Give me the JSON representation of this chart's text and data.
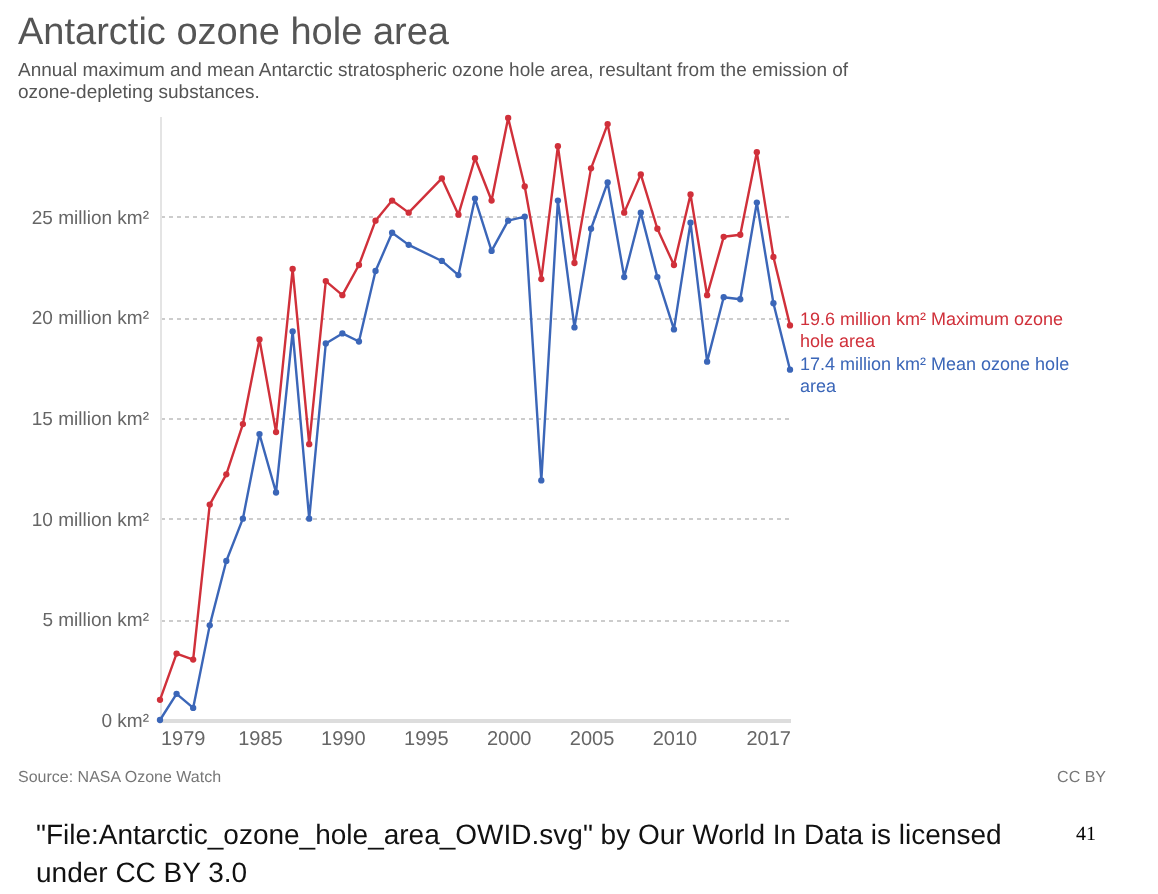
{
  "chart_data": {
    "type": "line",
    "title": "Antarctic ozone hole area",
    "subtitle": "Annual maximum and mean Antarctic stratospheric ozone hole area, resultant from the emission of ozone-depleting substances.",
    "x": [
      1979,
      1980,
      1981,
      1982,
      1983,
      1984,
      1985,
      1986,
      1987,
      1988,
      1989,
      1990,
      1991,
      1992,
      1993,
      1994,
      1996,
      1997,
      1998,
      1999,
      2000,
      2001,
      2002,
      2003,
      2004,
      2005,
      2006,
      2007,
      2008,
      2009,
      2010,
      2011,
      2012,
      2013,
      2014,
      2015,
      2016,
      2017
    ],
    "series": [
      {
        "name": "19.6 million km² Maximum ozone hole area",
        "color": "#d0303a",
        "values": [
          1.0,
          3.3,
          3.0,
          10.7,
          12.2,
          14.7,
          18.9,
          14.3,
          22.4,
          13.7,
          21.8,
          21.1,
          22.6,
          24.8,
          25.8,
          25.2,
          26.9,
          25.1,
          27.9,
          25.8,
          29.9,
          26.5,
          21.9,
          28.5,
          22.7,
          27.4,
          29.6,
          25.2,
          27.1,
          24.4,
          22.6,
          26.1,
          21.1,
          24.0,
          24.1,
          28.2,
          23.0,
          19.6
        ]
      },
      {
        "name": "17.4 million km² Mean ozone hole area",
        "color": "#3b66b8",
        "values": [
          0.0,
          1.3,
          0.6,
          4.7,
          7.9,
          10.0,
          14.2,
          11.3,
          19.3,
          10.0,
          18.7,
          19.2,
          18.8,
          22.3,
          24.2,
          23.6,
          22.8,
          22.1,
          25.9,
          23.3,
          24.8,
          25.0,
          11.9,
          25.8,
          19.5,
          24.4,
          26.7,
          22.0,
          25.2,
          22.0,
          19.4,
          24.7,
          17.8,
          21.0,
          20.9,
          25.7,
          20.7,
          17.4
        ]
      }
    ],
    "xlim": [
      1979,
      2017
    ],
    "xticks": [
      1979,
      1985,
      1990,
      1995,
      2000,
      2005,
      2010,
      2017
    ],
    "ylim": [
      0,
      30
    ],
    "yticks": [
      {
        "value": 0,
        "label": "0 km²"
      },
      {
        "value": 5,
        "label": "5 million km²"
      },
      {
        "value": 10,
        "label": "10 million km²"
      },
      {
        "value": 15,
        "label": "15 million km²"
      },
      {
        "value": 20,
        "label": "20 million km²"
      },
      {
        "value": 25,
        "label": "25 million km²"
      }
    ],
    "grid": "y",
    "legend": false,
    "marker": "circle",
    "line_style": "solid",
    "annotations": [
      "Source: NASA Ozone Watch",
      "CC BY",
      "\"File:Antarctic_ozone_hole_area_OWID.svg\" by Our World In Data is licensed under CC BY 3.0",
      "41"
    ]
  }
}
